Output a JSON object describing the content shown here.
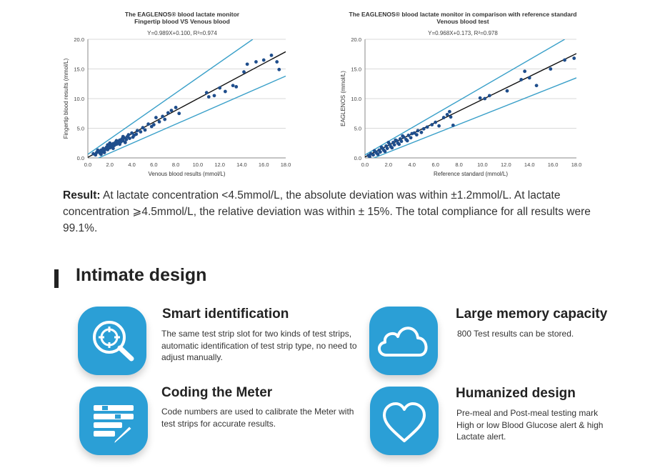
{
  "chart_data": [
    {
      "type": "scatter",
      "title": "The EAGLENOS® blood lactate monitor",
      "subtitle": "Fingertip blood VS Venous blood",
      "equation": "Y=0.989X+0.100, R²=0.974",
      "xlabel": "Venous blood results (mmol/L)",
      "ylabel": "Fingertip blood results (mmol/L)",
      "xlim": [
        0,
        18
      ],
      "ylim": [
        0,
        20
      ],
      "xticks": [
        "0.0",
        "2.0",
        "4.0",
        "6.0",
        "8.0",
        "10.0",
        "12.0",
        "14.0",
        "16.0",
        "18.0"
      ],
      "yticks": [
        "0.0",
        "5.0",
        "10.0",
        "15.0",
        "20.0"
      ],
      "grid": "horizontal",
      "regression": {
        "slope": 0.989,
        "intercept": 0.1
      },
      "bounds": {
        "upper": [
          [
            0,
            0.6
          ],
          [
            15.0,
            20
          ]
        ],
        "lower": [
          [
            0,
            -0.8
          ],
          [
            18,
            13.8
          ]
        ]
      },
      "points": [
        [
          0.5,
          0.7
        ],
        [
          0.8,
          0.9
        ],
        [
          1.0,
          1.1
        ],
        [
          1.1,
          0.8
        ],
        [
          1.2,
          1.3
        ],
        [
          1.3,
          1.0
        ],
        [
          1.4,
          1.6
        ],
        [
          1.5,
          1.2
        ],
        [
          1.6,
          1.5
        ],
        [
          1.7,
          1.8
        ],
        [
          1.8,
          1.4
        ],
        [
          1.9,
          2.0
        ],
        [
          2.0,
          1.7
        ],
        [
          2.1,
          2.2
        ],
        [
          2.2,
          1.9
        ],
        [
          2.3,
          2.4
        ],
        [
          2.4,
          2.1
        ],
        [
          2.5,
          2.6
        ],
        [
          2.6,
          2.3
        ],
        [
          2.7,
          2.8
        ],
        [
          2.8,
          2.5
        ],
        [
          2.9,
          3.0
        ],
        [
          3.0,
          2.7
        ],
        [
          3.1,
          3.2
        ],
        [
          3.2,
          2.9
        ],
        [
          3.3,
          3.4
        ],
        [
          3.5,
          3.1
        ],
        [
          3.6,
          3.6
        ],
        [
          3.8,
          3.3
        ],
        [
          4.0,
          4.2
        ],
        [
          4.2,
          3.8
        ],
        [
          4.5,
          4.6
        ],
        [
          4.8,
          4.4
        ],
        [
          5.0,
          5.1
        ],
        [
          5.5,
          5.7
        ],
        [
          5.8,
          5.3
        ],
        [
          6.2,
          6.8
        ],
        [
          6.5,
          6.1
        ],
        [
          7.0,
          6.5
        ],
        [
          7.3,
          7.6
        ],
        [
          7.6,
          8.0
        ],
        [
          8.0,
          8.5
        ],
        [
          8.3,
          7.5
        ],
        [
          10.8,
          11.0
        ],
        [
          11.0,
          10.3
        ],
        [
          11.5,
          10.5
        ],
        [
          12.0,
          11.8
        ],
        [
          12.5,
          11.2
        ],
        [
          13.2,
          12.2
        ],
        [
          13.5,
          12.0
        ],
        [
          14.2,
          14.5
        ],
        [
          14.5,
          15.8
        ],
        [
          15.3,
          16.2
        ],
        [
          16.0,
          16.5
        ],
        [
          16.7,
          17.3
        ],
        [
          17.2,
          16.2
        ],
        [
          17.4,
          14.9
        ],
        [
          0.7,
          0.5
        ],
        [
          0.9,
          1.3
        ],
        [
          1.2,
          0.6
        ],
        [
          1.5,
          0.9
        ],
        [
          1.8,
          2.2
        ],
        [
          2.0,
          2.5
        ],
        [
          2.3,
          1.6
        ],
        [
          2.6,
          2.9
        ],
        [
          2.9,
          2.3
        ],
        [
          3.2,
          3.6
        ],
        [
          3.4,
          2.6
        ],
        [
          3.7,
          3.9
        ],
        [
          4.1,
          3.5
        ],
        [
          4.4,
          4.0
        ],
        [
          5.2,
          4.7
        ],
        [
          6.0,
          5.6
        ],
        [
          6.8,
          7.0
        ]
      ]
    },
    {
      "type": "scatter",
      "title": "The EAGLENOS® blood lactate monitor in comparison with reference standard",
      "subtitle": "Venous blood test",
      "equation": "Y=0.968X+0.173, R²=0.978",
      "xlabel": "Reference standard  (mmol/L)",
      "ylabel": "EAGLENOS   (mmol/L)",
      "xlim": [
        0,
        18
      ],
      "ylim": [
        0,
        20
      ],
      "xticks": [
        "0.0",
        "2.0",
        "4.0",
        "6.0",
        "8.0",
        "10.0",
        "12.0",
        "14.0",
        "16.0",
        "18.0"
      ],
      "yticks": [
        "0.0",
        "5.0",
        "10.0",
        "15.0",
        "20.0"
      ],
      "grid": "horizontal",
      "regression": {
        "slope": 0.968,
        "intercept": 0.173
      },
      "bounds": {
        "upper": [
          [
            0,
            0.5
          ],
          [
            17.0,
            20
          ]
        ],
        "lower": [
          [
            0,
            -0.6
          ],
          [
            18,
            13.5
          ]
        ]
      },
      "points": [
        [
          0.3,
          0.4
        ],
        [
          0.5,
          0.7
        ],
        [
          0.7,
          0.5
        ],
        [
          0.9,
          1.0
        ],
        [
          1.0,
          0.8
        ],
        [
          1.2,
          1.3
        ],
        [
          1.3,
          1.0
        ],
        [
          1.5,
          1.6
        ],
        [
          1.6,
          1.3
        ],
        [
          1.8,
          2.0
        ],
        [
          1.9,
          1.6
        ],
        [
          2.1,
          2.3
        ],
        [
          2.2,
          1.9
        ],
        [
          2.4,
          2.6
        ],
        [
          2.5,
          2.2
        ],
        [
          2.7,
          2.9
        ],
        [
          2.8,
          2.5
        ],
        [
          3.0,
          3.2
        ],
        [
          3.1,
          2.8
        ],
        [
          3.3,
          3.5
        ],
        [
          3.5,
          3.1
        ],
        [
          3.7,
          3.8
        ],
        [
          3.9,
          3.4
        ],
        [
          4.2,
          4.2
        ],
        [
          4.5,
          4.6
        ],
        [
          4.8,
          4.3
        ],
        [
          5.3,
          5.2
        ],
        [
          5.7,
          5.6
        ],
        [
          6.0,
          6.0
        ],
        [
          6.3,
          5.4
        ],
        [
          6.7,
          6.8
        ],
        [
          7.0,
          7.3
        ],
        [
          7.2,
          7.8
        ],
        [
          7.3,
          6.9
        ],
        [
          7.5,
          5.5
        ],
        [
          9.8,
          10.1
        ],
        [
          10.2,
          10.0
        ],
        [
          10.6,
          10.5
        ],
        [
          12.1,
          11.3
        ],
        [
          13.3,
          13.2
        ],
        [
          13.6,
          14.6
        ],
        [
          14.0,
          13.5
        ],
        [
          14.6,
          12.2
        ],
        [
          15.8,
          15.0
        ],
        [
          17.0,
          16.5
        ],
        [
          17.8,
          16.8
        ],
        [
          0.4,
          0.2
        ],
        [
          0.8,
          1.2
        ],
        [
          1.1,
          0.6
        ],
        [
          1.4,
          1.8
        ],
        [
          1.7,
          1.1
        ],
        [
          2.0,
          2.6
        ],
        [
          2.3,
          1.7
        ],
        [
          2.6,
          3.0
        ],
        [
          2.9,
          2.3
        ],
        [
          3.2,
          3.7
        ],
        [
          3.6,
          2.9
        ],
        [
          4.0,
          4.1
        ],
        [
          4.4,
          3.9
        ],
        [
          5.0,
          4.9
        ]
      ]
    }
  ],
  "result": {
    "label": "Result:",
    "text": " At lactate concentration <4.5mmol/L, the absolute deviation was within ±1.2mmol/L. At lactate concentration ⩾4.5mmol/L, the relative deviation was within ± 15%. The total compliance for all results were 99.1%."
  },
  "section": {
    "title": "Intimate design"
  },
  "features": [
    {
      "title": "Smart identification",
      "desc": "The same test strip slot for two kinds of test strips, automatic identification of test strip type, no need to adjust manually.",
      "icon": "magnifier-crosshair-icon"
    },
    {
      "title": "Large memory capacity",
      "desc": "800 Test results can be stored.",
      "icon": "cloud-icon"
    },
    {
      "title": "Coding the Meter",
      "desc": "Code numbers are used to calibrate the Meter with test strips for accurate results.",
      "icon": "list-pencil-icon"
    },
    {
      "title": "Humanized design",
      "desc": "Pre-meal and Post-meal testing mark High or low Blood Glucose alert & high Lactate alert.",
      "icon": "heart-icon"
    }
  ],
  "colors": {
    "accent": "#2b9fd6",
    "point": "#1f4e8c",
    "band": "#3aa0c9",
    "regression": "#111111",
    "grid": "#d9d9d9"
  }
}
